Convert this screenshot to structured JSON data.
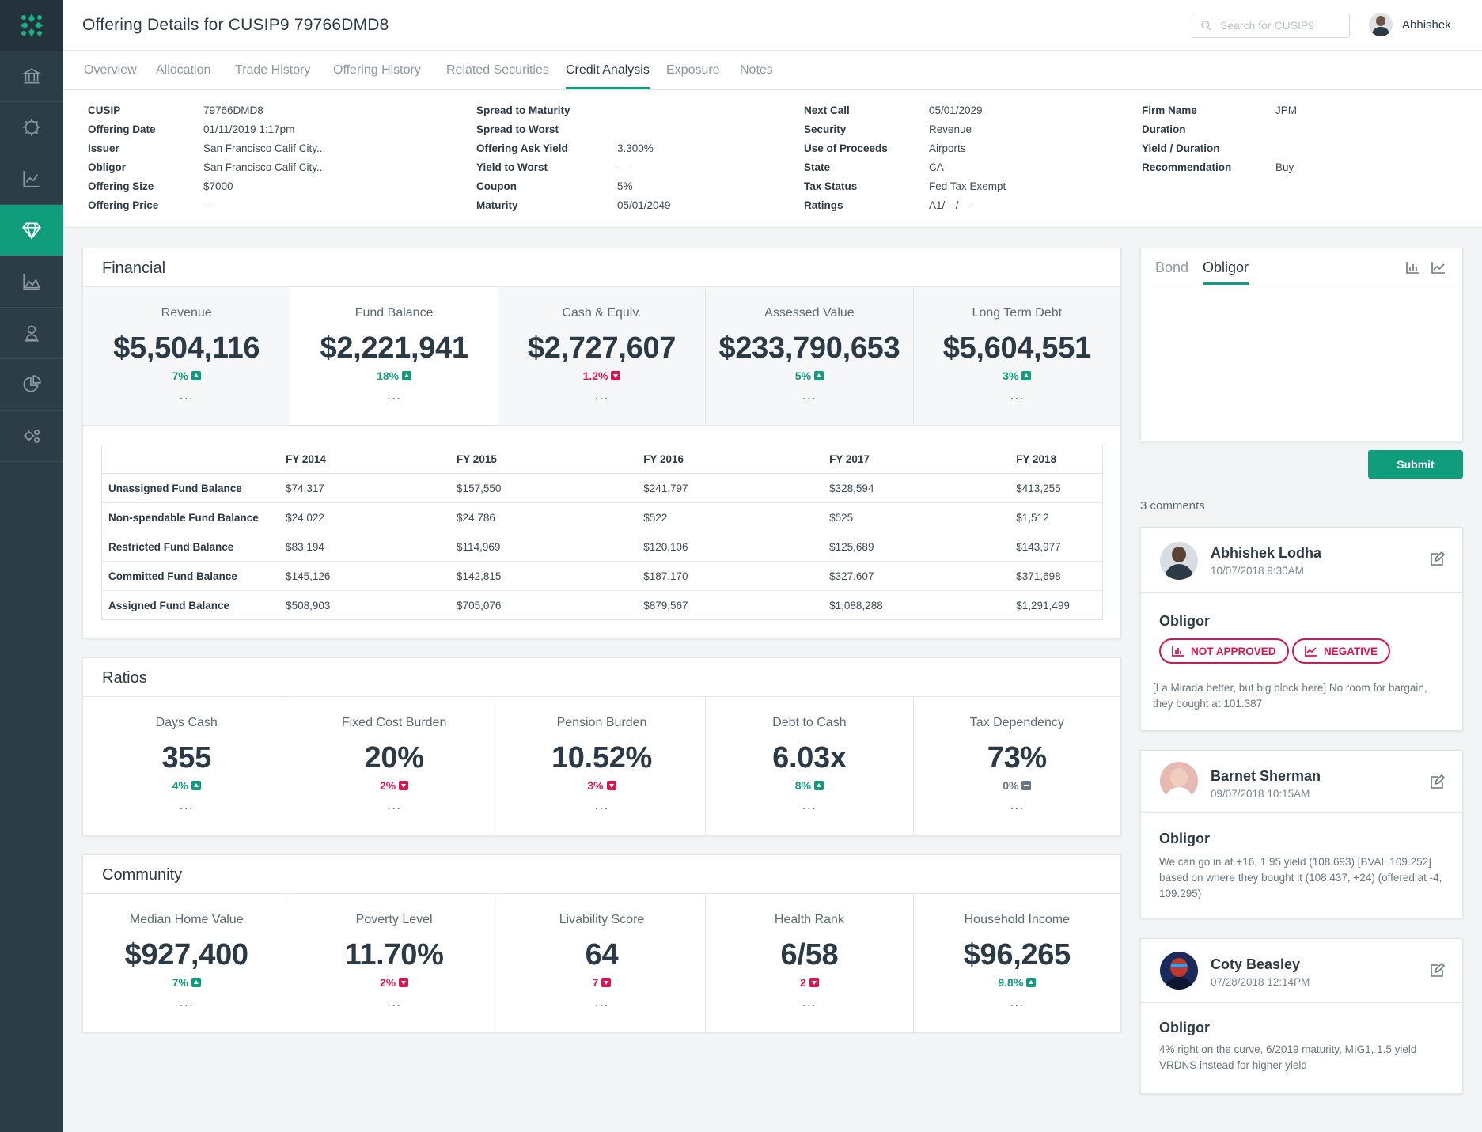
{
  "header": {
    "title": "Offering Details for CUSIP9 79766DMD8",
    "search_placeholder": "Search for CUSIP9",
    "user_name": "Abhishek"
  },
  "sidebar": {
    "icons": [
      "bank-icon",
      "settings-cog-icon",
      "line-chart-icon",
      "diamond-icon",
      "area-chart-icon",
      "contact-icon",
      "pie-chart-icon",
      "settings-gears-icon"
    ],
    "active_index": 3
  },
  "tabs": [
    "Overview",
    "Allocation",
    "Trade History",
    "Offering History",
    "Related Securities",
    "Credit Analysis",
    "Exposure",
    "Notes"
  ],
  "active_tab": "Credit Analysis",
  "meta": {
    "col1": [
      [
        "CUSIP",
        "79766DMD8"
      ],
      [
        "Offering Date",
        "01/11/2019 1:17pm"
      ],
      [
        "Issuer",
        "San Francisco Calif City..."
      ],
      [
        "Obligor",
        "San Francisco Calif City..."
      ],
      [
        "Offering Size",
        "$7000"
      ],
      [
        "Offering Price",
        "—"
      ]
    ],
    "col2": [
      [
        "Spread to Maturity",
        ""
      ],
      [
        "Spread to Worst",
        ""
      ],
      [
        "Offering Ask Yield",
        "3.300%"
      ],
      [
        "Yield to Worst",
        "—"
      ],
      [
        "Coupon",
        "5%"
      ],
      [
        "Maturity",
        "05/01/2049"
      ]
    ],
    "col3": [
      [
        "Next Call",
        "05/01/2029"
      ],
      [
        "Security",
        "Revenue"
      ],
      [
        "Use of Proceeds",
        "Airports"
      ],
      [
        "State",
        "CA"
      ],
      [
        "Tax Status",
        "Fed Tax Exempt"
      ],
      [
        "Ratings",
        "A1/—/—"
      ]
    ],
    "col4": [
      [
        "Firm Name",
        "JPM"
      ],
      [
        "Duration",
        ""
      ],
      [
        "Yield / Duration",
        ""
      ],
      [
        "Recommendation",
        "Buy"
      ]
    ]
  },
  "financial": {
    "title": "Financial",
    "stats": [
      {
        "label": "Revenue",
        "value": "$5,504,116",
        "change": "7%",
        "dir": "up"
      },
      {
        "label": "Fund Balance",
        "value": "$2,221,941",
        "change": "18%",
        "dir": "up"
      },
      {
        "label": "Cash & Equiv.",
        "value": "$2,727,607",
        "change": "1.2%",
        "dir": "down"
      },
      {
        "label": "Assessed Value",
        "value": "$233,790,653",
        "change": "5%",
        "dir": "up"
      },
      {
        "label": "Long Term Debt",
        "value": "$5,604,551",
        "change": "3%",
        "dir": "up"
      }
    ],
    "selected_index": 1,
    "table": {
      "headers": [
        "",
        "FY 2014",
        "FY 2015",
        "FY 2016",
        "FY 2017",
        "FY 2018"
      ],
      "rows": [
        [
          "Unassigned Fund Balance",
          "$74,317",
          "$157,550",
          "$241,797",
          "$328,594",
          "$413,255"
        ],
        [
          "Non-spendable Fund Balance",
          "$24,022",
          "$24,786",
          "$522",
          "$525",
          "$1,512"
        ],
        [
          "Restricted Fund Balance",
          "$83,194",
          "$114,969",
          "$120,106",
          "$125,689",
          "$143,977"
        ],
        [
          "Committed Fund Balance",
          "$145,126",
          "$142,815",
          "$187,170",
          "$327,607",
          "$371,698"
        ],
        [
          "Assigned Fund Balance",
          "$508,903",
          "$705,076",
          "$879,567",
          "$1,088,288",
          "$1,291,499"
        ]
      ]
    }
  },
  "ratios": {
    "title": "Ratios",
    "stats": [
      {
        "label": "Days Cash",
        "value": "355",
        "change": "4%",
        "dir": "up"
      },
      {
        "label": "Fixed Cost Burden",
        "value": "20%",
        "change": "2%",
        "dir": "down"
      },
      {
        "label": "Pension Burden",
        "value": "10.52%",
        "change": "3%",
        "dir": "down"
      },
      {
        "label": "Debt to Cash",
        "value": "6.03x",
        "change": "8%",
        "dir": "up"
      },
      {
        "label": "Tax Dependency",
        "value": "73%",
        "change": "0%",
        "dir": "flat"
      }
    ]
  },
  "community": {
    "title": "Community",
    "stats": [
      {
        "label": "Median Home Value",
        "value": "$927,400",
        "change": "7%",
        "dir": "up"
      },
      {
        "label": "Poverty Level",
        "value": "11.70%",
        "change": "2%",
        "dir": "down"
      },
      {
        "label": "Livability Score",
        "value": "64",
        "change": "7",
        "dir": "down"
      },
      {
        "label": "Health Rank",
        "value": "6/58",
        "change": "2",
        "dir": "down"
      },
      {
        "label": "Household Income",
        "value": "$96,265",
        "change": "9.8%",
        "dir": "up"
      }
    ]
  },
  "dots": "...",
  "notes": {
    "tabs": [
      "Bond",
      "Obligor"
    ],
    "active_tab": "Obligor",
    "submit_label": "Submit",
    "comment_count": "3 comments"
  },
  "comments": [
    {
      "name": "Abhishek Lodha",
      "date": "10/07/2018 9:30AM",
      "subject": "Obligor",
      "tags": [
        "NOT APPROVED",
        "NEGATIVE"
      ],
      "text": "[La Mirada better, but big block here] No room for bargain, they bought at 101.387"
    },
    {
      "name": "Barnet Sherman",
      "date": "09/07/2018 10:15AM",
      "subject": "Obligor",
      "text": "We can go in at +16, 1.95 yield (108.693) [BVAL 109.252] based on where they bought it (108.437, +24) (offered at -4, 109.295)"
    },
    {
      "name": "Coty Beasley",
      "date": "07/28/2018 12:14PM",
      "subject": "Obligor",
      "text": "4% right on the curve, 6/2019 maturity, MIG1, 1.5 yield VRDNS instead for higher yield"
    }
  ]
}
